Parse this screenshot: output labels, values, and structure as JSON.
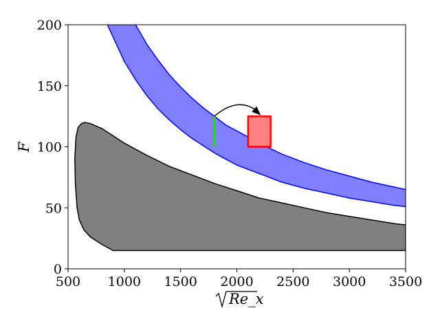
{
  "chart_data": {
    "type": "area",
    "xlabel": "Re_x",
    "ylabel": "F",
    "xlim": [
      500,
      3500
    ],
    "ylim": [
      0,
      200
    ],
    "x_ticks": [
      "500",
      "1000",
      "1500",
      "2000",
      "2500",
      "3000",
      "3500"
    ],
    "y_ticks": [
      "0",
      "50",
      "100",
      "150",
      "200"
    ],
    "grid": false,
    "colors": {
      "gray_region_fill": "#808080",
      "blue_band_fill": "#8080ff",
      "blue_band_edge": "#0000ff",
      "green_line": "#33cc33",
      "red_box_fill": "#ff8080",
      "red_box_edge": "#ff0000",
      "arrow": "#000000"
    },
    "gray_region": {
      "upper": [
        [
          560,
          90
        ],
        [
          570,
          108
        ],
        [
          590,
          116
        ],
        [
          620,
          119
        ],
        [
          650,
          120
        ],
        [
          700,
          119
        ],
        [
          800,
          115
        ],
        [
          900,
          109
        ],
        [
          1000,
          103
        ],
        [
          1200,
          93
        ],
        [
          1400,
          84
        ],
        [
          1600,
          77
        ],
        [
          1800,
          70
        ],
        [
          2000,
          64
        ],
        [
          2200,
          58
        ],
        [
          2400,
          54
        ],
        [
          2600,
          50
        ],
        [
          2800,
          46
        ],
        [
          3000,
          43
        ],
        [
          3200,
          40
        ],
        [
          3400,
          37
        ],
        [
          3500,
          36
        ]
      ],
      "lower_left": [
        [
          560,
          90
        ],
        [
          565,
          70
        ],
        [
          580,
          50
        ],
        [
          600,
          40
        ],
        [
          640,
          32
        ],
        [
          700,
          26
        ],
        [
          800,
          20
        ],
        [
          900,
          15
        ]
      ],
      "bottom": [
        [
          900,
          15
        ],
        [
          3500,
          15
        ]
      ]
    },
    "blue_band": {
      "upper": [
        [
          1100,
          200
        ],
        [
          1200,
          184
        ],
        [
          1300,
          171
        ],
        [
          1400,
          159
        ],
        [
          1500,
          149
        ],
        [
          1600,
          140
        ],
        [
          1700,
          132
        ],
        [
          1800,
          125
        ],
        [
          1900,
          118
        ],
        [
          2000,
          113
        ],
        [
          2200,
          103
        ],
        [
          2400,
          94
        ],
        [
          2600,
          87
        ],
        [
          2800,
          81
        ],
        [
          3000,
          76
        ],
        [
          3200,
          71
        ],
        [
          3400,
          67
        ],
        [
          3500,
          65
        ]
      ],
      "lower": [
        [
          850,
          200
        ],
        [
          1000,
          170
        ],
        [
          1100,
          155
        ],
        [
          1200,
          142
        ],
        [
          1300,
          131
        ],
        [
          1400,
          122
        ],
        [
          1500,
          114
        ],
        [
          1600,
          107
        ],
        [
          1700,
          101
        ],
        [
          1800,
          95
        ],
        [
          1900,
          90
        ],
        [
          2000,
          85
        ],
        [
          2200,
          78
        ],
        [
          2400,
          71
        ],
        [
          2600,
          66
        ],
        [
          2800,
          62
        ],
        [
          3000,
          58
        ],
        [
          3200,
          55
        ],
        [
          3400,
          52
        ],
        [
          3500,
          51
        ]
      ]
    },
    "green_segment": {
      "x": 1800,
      "y_from": 100,
      "y_to": 125
    },
    "red_box": {
      "x_from": 2100,
      "x_to": 2300,
      "y_from": 100,
      "y_to": 125
    },
    "arrow": {
      "from": [
        1800,
        125
      ],
      "to": [
        2200,
        127
      ],
      "peak": [
        2000,
        134
      ]
    }
  }
}
